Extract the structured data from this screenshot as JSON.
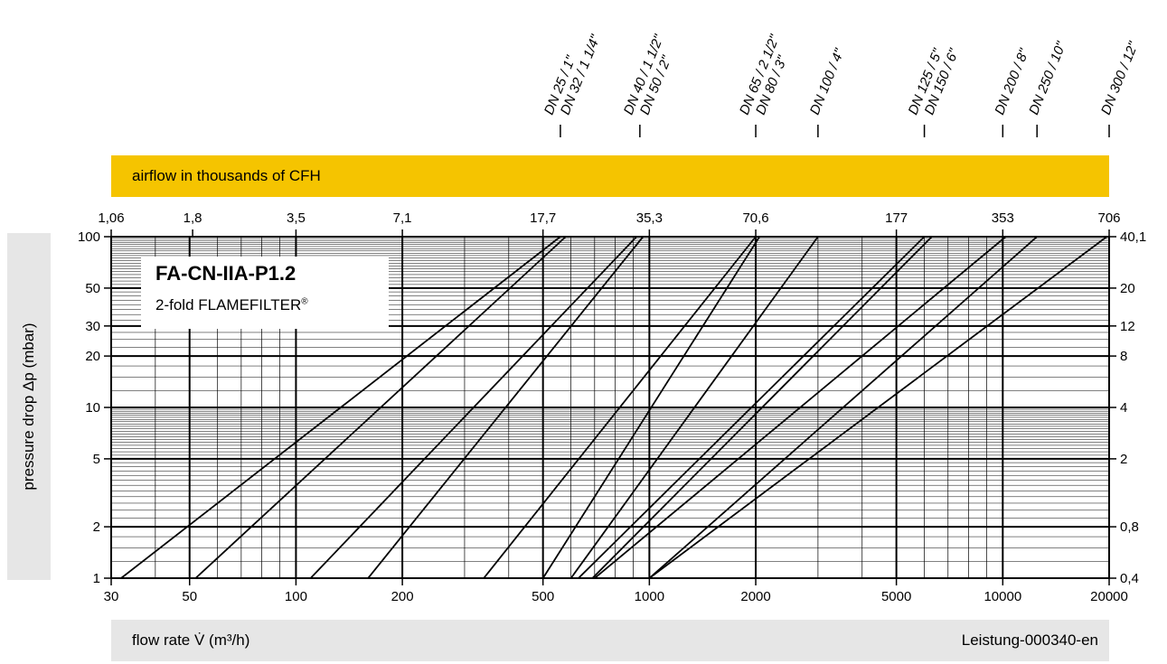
{
  "chart_data": {
    "type": "line",
    "title": "FA-CN-IIA-P1.2",
    "subtitle": "2-fold FLAMEFILTER",
    "subtitle_mark": "®",
    "xlabel": "flow rate V̇ (m³/h)",
    "ylabel": "pressure drop Δp (mbar)",
    "top_axis_label": "airflow in thousands of CFH",
    "footer_code": "Leistung-000340-en",
    "x_scale": "log",
    "y_scale": "log",
    "xlim": [
      30,
      20000
    ],
    "ylim": [
      1,
      100
    ],
    "grid": true,
    "x_ticks": [
      {
        "value": 30,
        "label": "30"
      },
      {
        "value": 50,
        "label": "50"
      },
      {
        "value": 100,
        "label": "100"
      },
      {
        "value": 200,
        "label": "200"
      },
      {
        "value": 500,
        "label": "500"
      },
      {
        "value": 1000,
        "label": "1000"
      },
      {
        "value": 2000,
        "label": "2000"
      },
      {
        "value": 5000,
        "label": "5000"
      },
      {
        "value": 10000,
        "label": "10000"
      },
      {
        "value": 20000,
        "label": "20000"
      }
    ],
    "y_ticks": [
      {
        "value": 1,
        "label": "1"
      },
      {
        "value": 2,
        "label": "2"
      },
      {
        "value": 5,
        "label": "5"
      },
      {
        "value": 10,
        "label": "10"
      },
      {
        "value": 20,
        "label": "20"
      },
      {
        "value": 30,
        "label": "30"
      },
      {
        "value": 50,
        "label": "50"
      },
      {
        "value": 100,
        "label": "100"
      }
    ],
    "right_ticks": [
      {
        "value": 1,
        "label": "0,4"
      },
      {
        "value": 2,
        "label": "0,8"
      },
      {
        "value": 5,
        "label": "2"
      },
      {
        "value": 10,
        "label": "4"
      },
      {
        "value": 20,
        "label": "8"
      },
      {
        "value": 30,
        "label": "12"
      },
      {
        "value": 50,
        "label": "20"
      },
      {
        "value": 100,
        "label": "40,1"
      }
    ],
    "top_ticks": [
      {
        "value": 30,
        "label": "1,06"
      },
      {
        "value": 51,
        "label": "1,8"
      },
      {
        "value": 100,
        "label": "3,5"
      },
      {
        "value": 200,
        "label": "7,1"
      },
      {
        "value": 500,
        "label": "17,7"
      },
      {
        "value": 1000,
        "label": "35,3"
      },
      {
        "value": 2000,
        "label": "70,6"
      },
      {
        "value": 5000,
        "label": "177"
      },
      {
        "value": 10000,
        "label": "353"
      },
      {
        "value": 20000,
        "label": "706"
      }
    ],
    "series": [
      {
        "name": "DN 25 / 1\"",
        "points": [
          [
            32,
            1
          ],
          [
            560,
            100
          ]
        ]
      },
      {
        "name": "DN 32 / 1 1/4\"",
        "points": [
          [
            52,
            1
          ],
          [
            580,
            100
          ]
        ]
      },
      {
        "name": "DN 40 / 1 1/2\"",
        "points": [
          [
            110,
            1
          ],
          [
            920,
            100
          ]
        ]
      },
      {
        "name": "DN 50 / 2\"",
        "points": [
          [
            160,
            1
          ],
          [
            960,
            100
          ]
        ]
      },
      {
        "name": "DN 65 / 2 1/2\"",
        "points": [
          [
            340,
            1
          ],
          [
            2000,
            100
          ]
        ]
      },
      {
        "name": "DN 80 / 3\"",
        "points": [
          [
            500,
            1
          ],
          [
            2050,
            100
          ]
        ]
      },
      {
        "name": "DN 100 / 4\"",
        "points": [
          [
            600,
            1
          ],
          [
            3000,
            100
          ]
        ]
      },
      {
        "name": "DN 125 / 5\"",
        "points": [
          [
            630,
            1
          ],
          [
            6000,
            100
          ]
        ]
      },
      {
        "name": "DN 150 / 6\"",
        "points": [
          [
            690,
            1
          ],
          [
            6300,
            100
          ]
        ]
      },
      {
        "name": "DN 200 / 8\"",
        "points": [
          [
            700,
            1
          ],
          [
            10200,
            100
          ]
        ]
      },
      {
        "name": "DN 250 / 10\"",
        "points": [
          [
            1000,
            1
          ],
          [
            12500,
            100
          ]
        ]
      },
      {
        "name": "DN 300 / 12\"",
        "points": [
          [
            1000,
            1
          ],
          [
            19700,
            100
          ]
        ]
      }
    ],
    "dn_markers": [
      {
        "x": 560,
        "lines": [
          "DN 25 / 1\"",
          "DN 32 / 1 1/4\""
        ]
      },
      {
        "x": 940,
        "lines": [
          "DN 40 / 1 1/2\"",
          "DN 50 / 2\""
        ]
      },
      {
        "x": 2000,
        "lines": [
          "DN 65 / 2 1/2\"",
          "DN 80 / 3\""
        ]
      },
      {
        "x": 3000,
        "lines": [
          "DN 100 / 4\""
        ]
      },
      {
        "x": 6000,
        "lines": [
          "DN 125 / 5\"",
          "DN 150 / 6\""
        ]
      },
      {
        "x": 10000,
        "lines": [
          "DN 200 / 8\""
        ]
      },
      {
        "x": 12500,
        "lines": [
          "DN 250 / 10\""
        ]
      },
      {
        "x": 20000,
        "lines": [
          "DN 300 / 12\""
        ]
      }
    ]
  }
}
